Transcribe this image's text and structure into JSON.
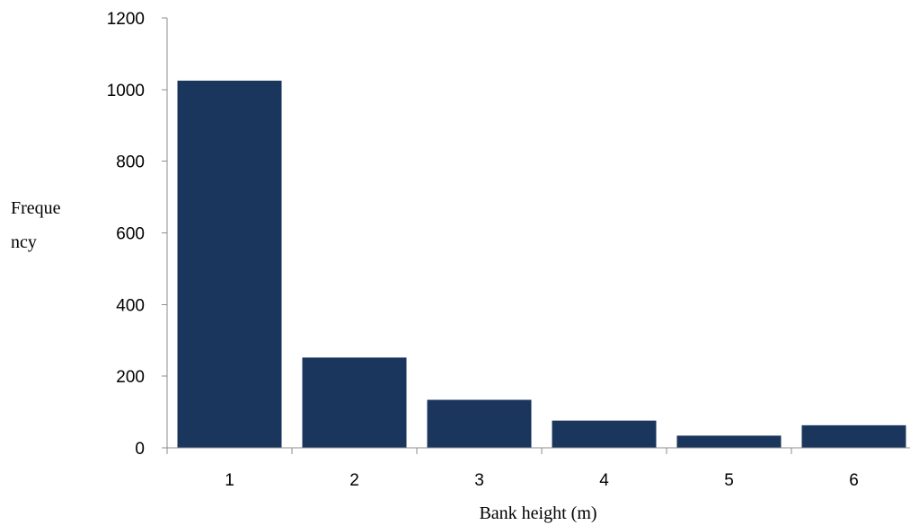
{
  "chart_data": {
    "type": "bar",
    "categories": [
      "1",
      "2",
      "3",
      "4",
      "5",
      "6"
    ],
    "values": [
      1025,
      252,
      134,
      76,
      34,
      63
    ],
    "title": "",
    "xlabel": "Bank height (m)",
    "ylabel_lines": [
      "Freque",
      "ncy"
    ],
    "ylim": [
      0,
      1200
    ],
    "yticks": [
      "0",
      "200",
      "400",
      "600",
      "800",
      "1000",
      "1200"
    ],
    "grid": false,
    "legend": "none",
    "bar_color": "#1b365d"
  }
}
